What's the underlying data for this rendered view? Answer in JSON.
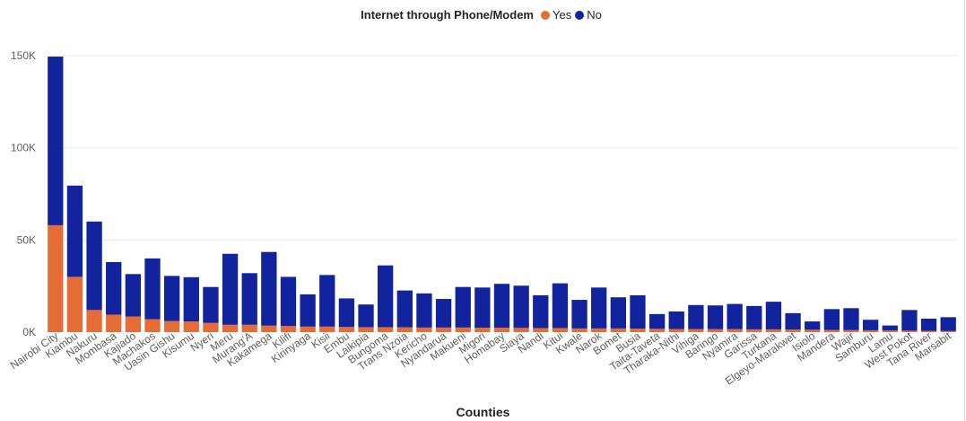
{
  "chart_data": {
    "type": "bar",
    "stacked": true,
    "legend_title": "Internet through Phone/Modem",
    "xlabel": "Counties",
    "ylabel": "",
    "ylim": [
      0,
      150000
    ],
    "y_ticks": [
      0,
      50000,
      100000,
      150000
    ],
    "y_tick_labels": [
      "0K",
      "50K",
      "100K",
      "150K"
    ],
    "grid": true,
    "legend_position": "top-center",
    "categories": [
      "Nairobi City",
      "Kiambu",
      "Nakuru",
      "Mombasa",
      "Kajiado",
      "Machakos",
      "Uasin Gishu",
      "Kisumu",
      "Nyeri",
      "Meru",
      "Murang'A",
      "Kakamega",
      "Kilifi",
      "Kirinyaga",
      "Kisii",
      "Embu",
      "Laikipia",
      "Bungoma",
      "Trans Nzoia",
      "Kericho",
      "Nyandarua",
      "Makueni",
      "Migori",
      "Homabay",
      "Siaya",
      "Nandi",
      "Kitui",
      "Kwale",
      "Narok",
      "Bomet",
      "Busia",
      "Taita-Taveta",
      "Tharaka-Nithi",
      "Vihiga",
      "Baringo",
      "Nyamira",
      "Garissa",
      "Turkana",
      "Elgeyo-Marakwet",
      "Isiolo",
      "Mandera",
      "Wajir",
      "Samburu",
      "Lamu",
      "West Pokot",
      "Tana River",
      "Marsabit"
    ],
    "series": [
      {
        "name": "Yes",
        "color": "#e66c37",
        "values": [
          58000,
          30000,
          12000,
          9500,
          8500,
          7000,
          6000,
          5800,
          5000,
          4000,
          4000,
          3500,
          3300,
          3000,
          3000,
          2800,
          2700,
          2700,
          2600,
          2500,
          2500,
          2500,
          2400,
          2400,
          2300,
          2200,
          2200,
          2000,
          2000,
          2000,
          1900,
          1800,
          1700,
          1700,
          1600,
          1600,
          1500,
          1500,
          1400,
          1300,
          1200,
          1100,
          1000,
          900,
          800,
          700,
          600
        ]
      },
      {
        "name": "No",
        "color": "#12239e",
        "values": [
          91500,
          49500,
          48000,
          28500,
          23000,
          33000,
          24500,
          24000,
          19500,
          38500,
          28000,
          40000,
          26700,
          17500,
          28000,
          15500,
          12300,
          33500,
          20000,
          18500,
          15500,
          22000,
          21800,
          23800,
          22900,
          17800,
          24300,
          15500,
          22200,
          16900,
          18100,
          8000,
          9500,
          13000,
          12900,
          13700,
          12700,
          15000,
          8900,
          4500,
          11300,
          11900,
          5700,
          2700,
          11200,
          6600,
          7500
        ]
      }
    ]
  }
}
